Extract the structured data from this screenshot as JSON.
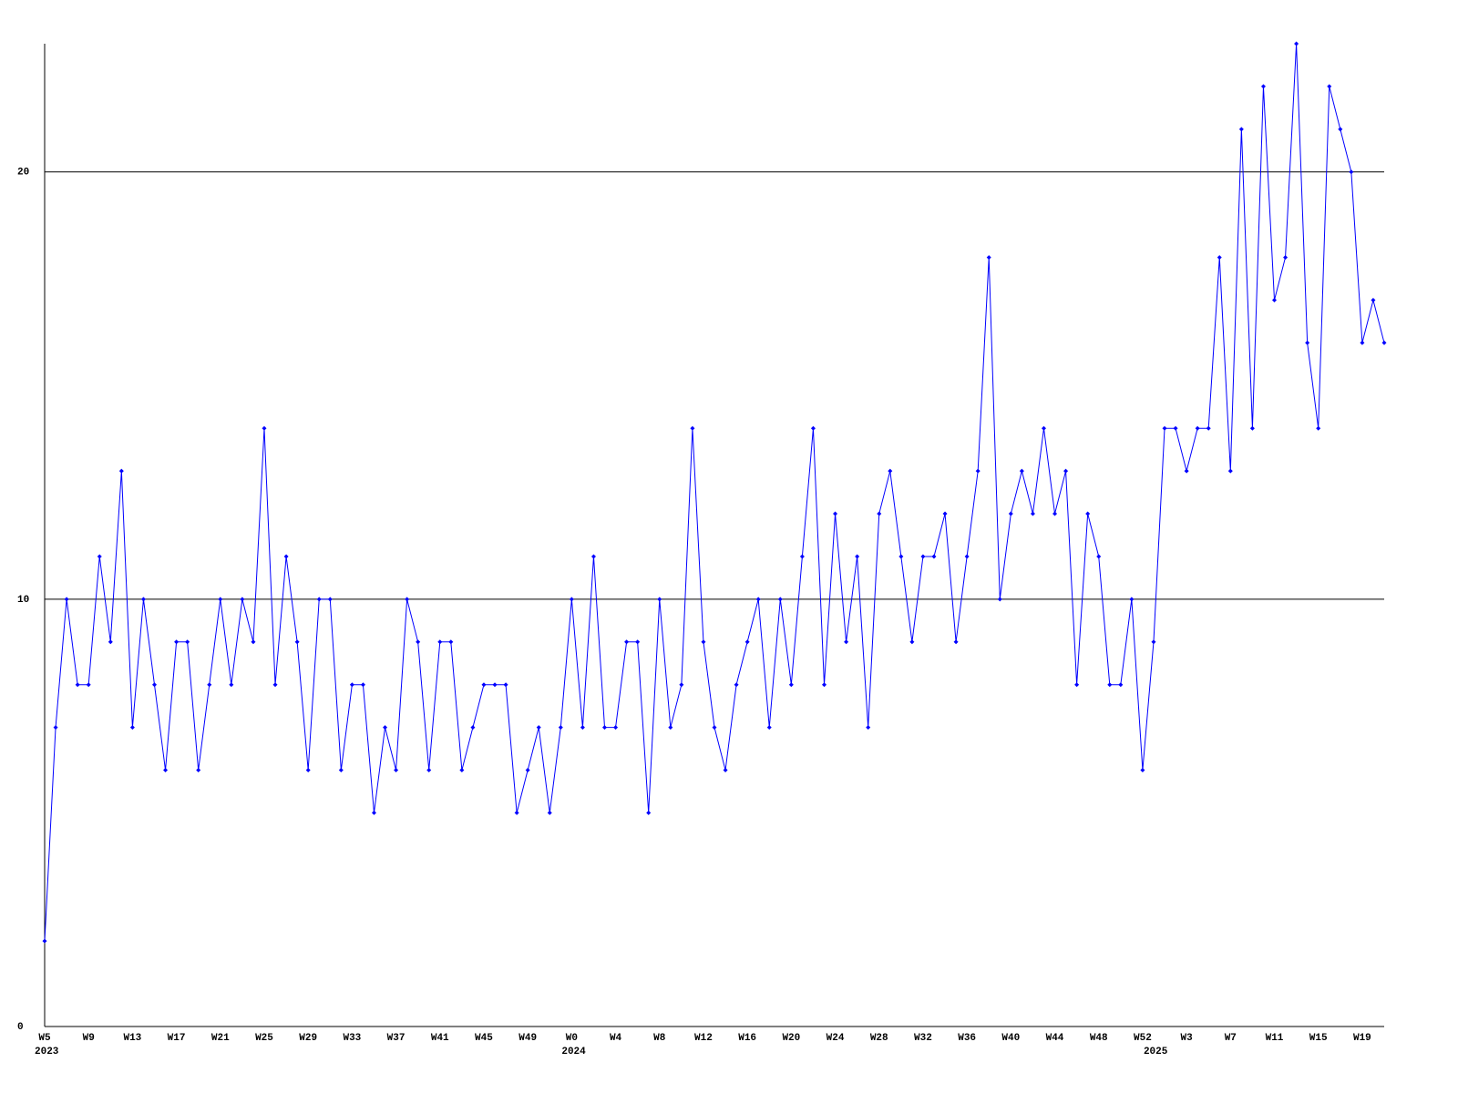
{
  "chart_data": {
    "type": "line",
    "grid": true,
    "color": "#0000ff",
    "ylim": [
      0,
      23
    ],
    "yticks": [
      0,
      10,
      20
    ],
    "categories": [
      "W5",
      null,
      null,
      null,
      "W9",
      null,
      null,
      null,
      "W13",
      null,
      null,
      null,
      "W17",
      null,
      null,
      null,
      "W21",
      null,
      null,
      null,
      "W25",
      null,
      null,
      null,
      "W29",
      null,
      null,
      null,
      "W33",
      null,
      null,
      null,
      "W37",
      null,
      null,
      null,
      "W41",
      null,
      null,
      null,
      "W45",
      null,
      null,
      null,
      "W49",
      null,
      null,
      null,
      "W0",
      null,
      null,
      null,
      "W4",
      null,
      null,
      null,
      "W8",
      null,
      null,
      null,
      "W12",
      null,
      null,
      null,
      "W16",
      null,
      null,
      null,
      "W20",
      null,
      null,
      null,
      "W24",
      null,
      null,
      null,
      "W28",
      null,
      null,
      null,
      "W32",
      null,
      null,
      null,
      "W36",
      null,
      null,
      null,
      "W40",
      null,
      null,
      null,
      "W44",
      null,
      null,
      null,
      "W48",
      null,
      null,
      null,
      "W52",
      null,
      null,
      null,
      "W3",
      null,
      null,
      null,
      "W7",
      null,
      null,
      null,
      "W11",
      null,
      null,
      null,
      "W15",
      null,
      null,
      null,
      "W19",
      null,
      null
    ],
    "year_labels": [
      "2023",
      null,
      null,
      null,
      null,
      null,
      null,
      null,
      null,
      null,
      null,
      null,
      null,
      null,
      null,
      null,
      null,
      null,
      null,
      null,
      null,
      null,
      null,
      null,
      null,
      null,
      null,
      null,
      null,
      null,
      null,
      null,
      null,
      null,
      null,
      null,
      null,
      null,
      null,
      null,
      null,
      null,
      null,
      null,
      null,
      null,
      null,
      null,
      "2024",
      null,
      null,
      null,
      null,
      null,
      null,
      null,
      null,
      null,
      null,
      null,
      null,
      null,
      null,
      null,
      null,
      null,
      null,
      null,
      null,
      null,
      null,
      null,
      null,
      null,
      null,
      null,
      null,
      null,
      null,
      null,
      null,
      null,
      null,
      null,
      null,
      null,
      null,
      null,
      null,
      null,
      null,
      null,
      null,
      null,
      null,
      null,
      null,
      null,
      null,
      null,
      null,
      "2025",
      null,
      null,
      null,
      null,
      null,
      null,
      null,
      null,
      null,
      null,
      null,
      null,
      null,
      null,
      null,
      null,
      null,
      null,
      null,
      null,
      null
    ],
    "values": [
      2,
      7,
      10,
      8,
      8,
      11,
      9,
      13,
      7,
      10,
      8,
      6,
      9,
      9,
      6,
      8,
      10,
      8,
      10,
      9,
      14,
      8,
      11,
      9,
      6,
      10,
      10,
      6,
      8,
      8,
      5,
      7,
      6,
      10,
      9,
      6,
      9,
      9,
      6,
      7,
      8,
      8,
      8,
      5,
      6,
      7,
      5,
      7,
      10,
      7,
      11,
      7,
      7,
      9,
      9,
      5,
      10,
      7,
      8,
      14,
      9,
      7,
      6,
      8,
      9,
      10,
      7,
      10,
      8,
      11,
      14,
      8,
      12,
      9,
      11,
      7,
      12,
      13,
      11,
      9,
      11,
      11,
      12,
      9,
      11,
      13,
      18,
      10,
      12,
      13,
      12,
      14,
      12,
      13,
      8,
      12,
      11,
      8,
      8,
      10,
      6,
      9,
      14,
      14,
      13,
      14,
      14,
      18,
      13,
      21,
      14,
      22,
      17,
      18,
      23,
      16,
      14,
      22,
      21,
      20,
      16,
      17,
      16
    ]
  }
}
